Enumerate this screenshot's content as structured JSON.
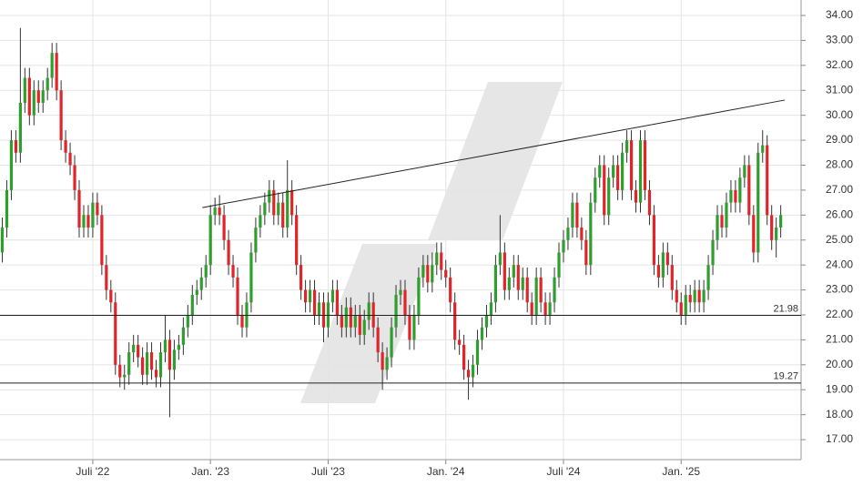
{
  "chart_data": {
    "type": "candlestick",
    "categories": [
      null,
      null,
      null,
      null,
      null,
      null,
      null,
      null,
      null,
      null,
      null,
      null,
      null,
      null,
      null,
      null,
      null,
      null,
      null,
      null,
      null,
      null,
      null,
      null,
      null,
      null,
      null,
      null,
      null,
      null,
      null,
      null,
      null,
      null,
      null,
      null,
      null,
      null,
      null,
      null,
      null,
      null,
      null,
      null,
      null,
      null,
      null,
      null,
      null,
      null,
      null,
      null,
      null,
      null,
      null,
      null,
      null,
      null,
      null,
      null,
      null,
      null,
      null,
      null,
      null,
      null,
      null,
      null,
      null,
      null,
      null,
      null,
      null,
      null,
      null,
      null,
      null,
      null,
      null,
      null,
      null,
      null,
      null,
      null,
      null,
      null,
      null,
      null,
      null,
      null,
      null,
      null,
      null,
      null,
      null,
      null,
      null,
      null,
      null,
      null,
      null,
      null,
      null,
      null,
      null,
      null,
      null,
      null,
      null,
      null,
      null,
      null,
      null,
      null,
      null,
      null,
      null,
      null,
      null,
      null,
      null,
      null,
      null,
      null,
      null,
      null,
      null,
      null,
      null,
      null,
      null,
      null,
      null,
      null,
      null,
      null,
      null,
      null,
      null,
      null,
      null,
      null,
      null,
      null,
      null,
      null,
      null,
      null,
      null,
      null,
      null,
      null,
      null,
      null,
      null,
      null,
      null,
      null,
      null,
      null,
      null,
      null,
      null,
      null,
      null,
      null,
      null,
      null,
      null,
      null,
      null,
      null,
      null
    ],
    "open": [
      24.5,
      25.5,
      27.0,
      29.0,
      28.5,
      30.5,
      31.5,
      30.0,
      31.0,
      30.5,
      31.0,
      31.5,
      32.5,
      31.0,
      29.0,
      28.5,
      28.0,
      27.0,
      25.5,
      26.0,
      25.5,
      26.5,
      26.0,
      24.0,
      23.0,
      22.5,
      20.0,
      19.5,
      19.6,
      20.5,
      20.8,
      20.3,
      19.6,
      20.5,
      19.8,
      19.5,
      20.5,
      21.0,
      19.8,
      20.6,
      20.8,
      21.5,
      22.0,
      22.8,
      23.0,
      23.5,
      24.0,
      26.0,
      26.3,
      26.0,
      25.0,
      24.0,
      23.5,
      22.0,
      21.5,
      22.5,
      24.5,
      25.5,
      26.0,
      26.5,
      27.0,
      26.0,
      26.5,
      25.5,
      27.0,
      26.0,
      24.0,
      23.0,
      22.5,
      23.0,
      22.0,
      22.5,
      21.5,
      22.5,
      23.0,
      22.0,
      21.5,
      22.3,
      21.5,
      22.0,
      21.2,
      21.8,
      22.5,
      21.5,
      20.5,
      19.8,
      20.3,
      21.5,
      22.8,
      23.0,
      22.0,
      21.0,
      22.0,
      23.5,
      24.0,
      23.3,
      24.0,
      24.5,
      23.8,
      23.5,
      22.5,
      21.0,
      20.8,
      19.8,
      19.5,
      20.0,
      21.0,
      21.5,
      22.0,
      22.5,
      24.0,
      24.5,
      23.0,
      23.5,
      24.0,
      23.0,
      23.5,
      22.5,
      22.0,
      23.5,
      22.5,
      22.0,
      22.5,
      23.5,
      24.5,
      25.0,
      25.5,
      26.5,
      25.5,
      25.0,
      24.0,
      26.5,
      27.5,
      28.0,
      26.0,
      27.5,
      28.0,
      27.0,
      28.5,
      29.0,
      27.0,
      26.5,
      29.0,
      27.0,
      26.0,
      24.0,
      23.5,
      24.5,
      24.0,
      23.0,
      22.5,
      22.0,
      22.8,
      22.5,
      23.0,
      22.5,
      23.0,
      24.0,
      25.0,
      26.0,
      25.5,
      26.5,
      27.0,
      26.5,
      27.5,
      28.0,
      26.0,
      24.5,
      28.5,
      28.8,
      26.0,
      25.0,
      25.5
    ],
    "high": [
      25.9,
      27.4,
      29.4,
      29.4,
      33.5,
      31.9,
      31.9,
      31.4,
      31.4,
      31.4,
      31.9,
      32.9,
      32.9,
      31.4,
      29.4,
      28.9,
      28.4,
      27.4,
      26.4,
      26.4,
      26.9,
      26.9,
      26.4,
      24.4,
      23.4,
      22.9,
      20.4,
      20.0,
      20.9,
      21.2,
      21.2,
      20.7,
      20.9,
      20.9,
      20.2,
      20.9,
      22.0,
      21.4,
      21.0,
      21.2,
      21.9,
      22.4,
      23.2,
      23.4,
      23.9,
      24.4,
      26.4,
      26.7,
      26.8,
      26.4,
      25.4,
      24.4,
      23.9,
      22.4,
      22.9,
      24.9,
      25.9,
      26.4,
      26.9,
      27.4,
      27.4,
      26.9,
      26.9,
      28.2,
      27.4,
      26.4,
      24.4,
      23.4,
      23.4,
      23.4,
      22.9,
      22.9,
      22.9,
      23.4,
      23.4,
      22.4,
      22.7,
      22.7,
      22.4,
      22.4,
      22.2,
      22.9,
      22.9,
      21.9,
      20.9,
      20.7,
      21.9,
      23.2,
      23.4,
      23.4,
      22.4,
      22.4,
      23.9,
      24.4,
      24.4,
      24.5,
      24.9,
      24.9,
      24.2,
      23.9,
      22.9,
      21.4,
      21.2,
      20.2,
      20.4,
      21.4,
      21.9,
      22.4,
      22.9,
      24.4,
      26.0,
      24.9,
      23.9,
      24.4,
      24.4,
      23.9,
      23.9,
      22.9,
      23.9,
      23.9,
      22.9,
      22.9,
      23.9,
      24.9,
      25.4,
      25.9,
      26.9,
      26.9,
      25.9,
      25.4,
      26.9,
      27.9,
      28.4,
      28.4,
      27.9,
      28.4,
      28.4,
      28.9,
      29.4,
      29.4,
      27.4,
      29.4,
      29.4,
      27.4,
      26.4,
      24.4,
      24.9,
      24.9,
      24.4,
      23.4,
      22.9,
      23.2,
      23.2,
      23.4,
      23.4,
      23.4,
      24.4,
      25.4,
      26.4,
      26.4,
      26.9,
      27.4,
      27.4,
      27.9,
      28.4,
      28.4,
      26.4,
      28.9,
      29.4,
      29.2,
      26.4,
      25.9,
      26.4
    ],
    "low": [
      24.1,
      25.1,
      26.6,
      28.1,
      28.1,
      30.1,
      29.6,
      29.6,
      30.1,
      30.1,
      30.6,
      31.1,
      30.6,
      28.6,
      28.1,
      27.6,
      26.6,
      25.1,
      25.1,
      25.1,
      25.1,
      25.6,
      23.6,
      22.6,
      22.1,
      19.6,
      19.1,
      19.0,
      19.2,
      20.1,
      19.9,
      19.2,
      19.2,
      19.4,
      19.1,
      19.1,
      20.1,
      17.9,
      19.4,
      20.2,
      20.4,
      21.1,
      21.6,
      22.4,
      22.6,
      23.1,
      23.6,
      25.6,
      25.6,
      24.6,
      23.6,
      23.1,
      21.6,
      21.1,
      21.1,
      22.1,
      24.1,
      25.1,
      25.6,
      26.1,
      25.6,
      25.6,
      25.1,
      25.1,
      25.6,
      23.6,
      22.6,
      22.1,
      22.1,
      21.6,
      21.6,
      20.9,
      21.1,
      22.1,
      21.6,
      21.1,
      21.1,
      21.1,
      21.1,
      20.8,
      20.8,
      21.4,
      21.1,
      20.1,
      19.0,
      19.4,
      19.9,
      21.1,
      22.4,
      21.6,
      20.6,
      20.6,
      21.6,
      23.1,
      22.9,
      22.9,
      23.6,
      23.4,
      23.1,
      22.1,
      20.6,
      20.4,
      19.4,
      18.6,
      19.1,
      19.6,
      20.6,
      21.1,
      21.6,
      22.1,
      23.6,
      22.6,
      22.6,
      23.1,
      22.6,
      22.6,
      22.1,
      21.6,
      21.6,
      22.1,
      21.6,
      21.6,
      22.1,
      23.1,
      24.1,
      24.6,
      25.1,
      25.1,
      24.6,
      23.6,
      23.6,
      26.1,
      27.1,
      25.6,
      25.6,
      27.1,
      26.6,
      26.6,
      28.1,
      26.6,
      26.1,
      26.1,
      26.6,
      25.6,
      23.6,
      23.1,
      23.1,
      23.6,
      22.6,
      22.1,
      21.6,
      21.6,
      22.1,
      22.1,
      22.1,
      22.1,
      22.6,
      23.6,
      24.6,
      25.1,
      25.1,
      26.1,
      26.1,
      26.1,
      27.1,
      25.6,
      24.1,
      24.1,
      28.1,
      25.6,
      24.6,
      24.3,
      25.1
    ],
    "close": [
      25.5,
      27.0,
      29.0,
      28.5,
      30.5,
      31.5,
      30.0,
      31.0,
      30.5,
      31.0,
      31.5,
      32.5,
      31.0,
      29.0,
      28.5,
      28.0,
      27.0,
      25.5,
      26.0,
      25.5,
      26.5,
      26.0,
      24.0,
      23.0,
      22.5,
      20.0,
      19.5,
      19.6,
      20.5,
      20.8,
      20.3,
      19.6,
      20.5,
      19.8,
      19.5,
      20.5,
      21.0,
      19.8,
      20.6,
      20.8,
      21.5,
      22.0,
      22.8,
      23.0,
      23.5,
      24.0,
      26.0,
      26.3,
      26.0,
      25.0,
      24.0,
      23.5,
      22.0,
      21.5,
      22.5,
      24.5,
      25.5,
      26.0,
      26.5,
      27.0,
      26.0,
      26.5,
      25.5,
      27.0,
      26.0,
      24.0,
      23.0,
      22.5,
      23.0,
      22.0,
      22.5,
      21.5,
      22.5,
      23.0,
      22.0,
      21.5,
      22.3,
      21.5,
      22.0,
      21.2,
      21.8,
      22.5,
      21.5,
      20.5,
      19.8,
      20.3,
      21.5,
      22.8,
      23.0,
      22.0,
      21.0,
      22.0,
      23.5,
      24.0,
      23.3,
      24.0,
      24.5,
      23.8,
      23.5,
      22.5,
      21.0,
      20.8,
      19.8,
      19.5,
      20.0,
      21.0,
      21.5,
      22.0,
      22.5,
      24.0,
      24.5,
      23.0,
      23.5,
      24.0,
      23.0,
      23.5,
      22.5,
      22.0,
      23.5,
      22.5,
      22.0,
      22.5,
      23.5,
      24.5,
      25.0,
      25.5,
      26.5,
      25.5,
      25.0,
      24.0,
      26.5,
      27.5,
      28.0,
      26.0,
      27.5,
      28.0,
      27.0,
      28.5,
      29.0,
      27.0,
      26.5,
      29.0,
      27.0,
      26.0,
      24.0,
      23.5,
      24.5,
      24.0,
      23.0,
      22.5,
      22.0,
      22.8,
      22.5,
      23.0,
      22.5,
      23.0,
      24.0,
      25.0,
      26.0,
      25.5,
      26.5,
      27.0,
      26.5,
      27.5,
      28.0,
      26.0,
      24.5,
      28.5,
      28.8,
      26.0,
      25.0,
      25.5,
      26.0
    ],
    "up_color": "#2f9e2f",
    "down_color": "#e0242a",
    "wick_color": "#333333",
    "levels": [
      21.98,
      19.27
    ],
    "trendline": {
      "x": [
        44.2,
        172.9
      ],
      "y": [
        26.3,
        30.61
      ]
    },
    "xlim": [
      -0.5,
      176.5
    ],
    "xticks": [
      {
        "value": 20,
        "label": "Juli '22"
      },
      {
        "value": 46,
        "label": "Jan. '23"
      },
      {
        "value": 72,
        "label": "Juli '23"
      },
      {
        "value": 98,
        "label": "Jan. '24"
      },
      {
        "value": 124,
        "label": "Juli '24"
      },
      {
        "value": 150,
        "label": "Jan. '25"
      }
    ],
    "ylim": [
      16.2,
      34.62
    ],
    "yticks": [
      {
        "value": 17,
        "label": "17.00"
      },
      {
        "value": 18,
        "label": "18.00"
      },
      {
        "value": 19,
        "label": "19.00"
      },
      {
        "value": 20,
        "label": "20.00"
      },
      {
        "value": 21,
        "label": "21.00"
      },
      {
        "value": 22,
        "label": "22.00"
      },
      {
        "value": 23,
        "label": "23.00"
      },
      {
        "value": 24,
        "label": "24.00"
      },
      {
        "value": 25,
        "label": "25.00"
      },
      {
        "value": 26,
        "label": "26.00"
      },
      {
        "value": 27,
        "label": "27.00"
      },
      {
        "value": 28,
        "label": "28.00"
      },
      {
        "value": 29,
        "label": "29.00"
      },
      {
        "value": 30,
        "label": "30.00"
      },
      {
        "value": 31,
        "label": "31.00"
      },
      {
        "value": 32,
        "label": "32.00"
      },
      {
        "value": 33,
        "label": "33.00"
      },
      {
        "value": 34,
        "label": "34.00"
      }
    ],
    "grid": true
  }
}
